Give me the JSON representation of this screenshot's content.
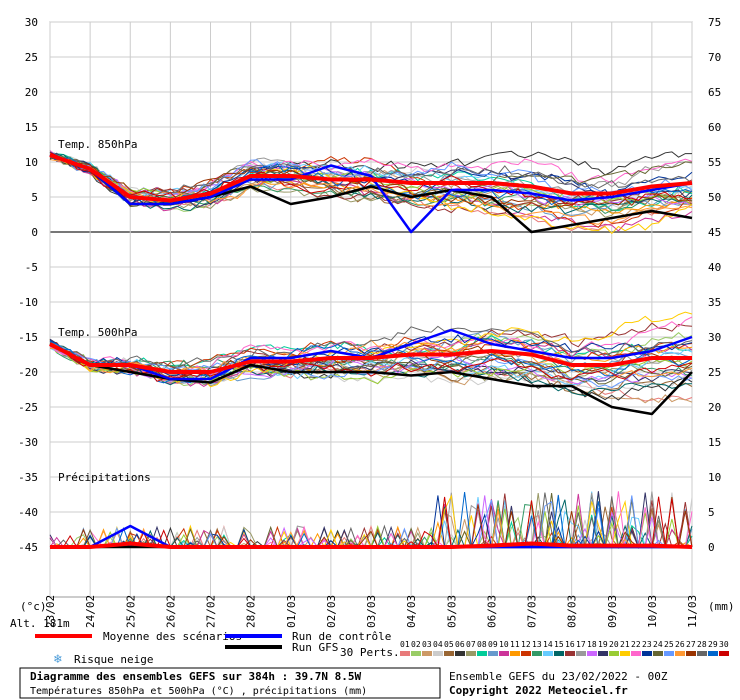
{
  "chart_data": {
    "type": "line",
    "title": "Diagramme des ensembles GEFS sur 384h : 39.7N 8.5W",
    "subtitle": "Températures 850hPa et 500hPa (°C) , précipitations (mm)",
    "run_info": "Ensemble GEFS du 23/02/2022 - 00Z",
    "copyright": "Copyright 2022 Meteociel.fr",
    "altitude": "Alt. 181m",
    "left_unit": "(°c)",
    "right_unit": "(mm)",
    "x_dates": [
      "23/02",
      "24/02",
      "25/02",
      "26/02",
      "27/02",
      "28/02",
      "01/03",
      "02/03",
      "03/03",
      "04/03",
      "05/03",
      "06/03",
      "07/03",
      "08/03",
      "09/03",
      "10/03",
      "11/03"
    ],
    "left_axis": {
      "ticks": [
        30,
        25,
        20,
        15,
        10,
        5,
        0,
        -5,
        -10,
        -15,
        -20,
        -25,
        -30,
        -35,
        -40,
        -45
      ],
      "ylim": [
        -45,
        30
      ]
    },
    "right_axis": {
      "ticks": [
        75,
        70,
        65,
        60,
        55,
        50,
        45,
        40,
        35,
        30,
        25,
        20,
        15,
        10,
        5,
        0
      ]
    },
    "panel_labels": {
      "t850": "Temp. 850hPa",
      "t500": "Temp. 500hPa",
      "precip": "Précipitations"
    },
    "series": [
      {
        "name": "Moyenne des scénarios",
        "panel": "t850",
        "x": [
          0,
          1,
          2,
          3,
          4,
          5,
          6,
          7,
          8,
          9,
          10,
          11,
          12,
          13,
          14,
          15,
          16
        ],
        "values": [
          11,
          9,
          5,
          4.5,
          5.5,
          8,
          8,
          7.5,
          7.5,
          7,
          7,
          7,
          6.5,
          5.5,
          5.5,
          6.5,
          7
        ]
      },
      {
        "name": "Run de contrôle",
        "panel": "t850",
        "x": [
          0,
          1,
          2,
          3,
          4,
          5,
          6,
          7,
          8,
          9,
          10,
          11,
          12,
          13,
          14,
          15,
          16
        ],
        "values": [
          11,
          9,
          4,
          4,
          5,
          7.5,
          7.5,
          9.5,
          8,
          0,
          6,
          6,
          5.5,
          4.5,
          5,
          6,
          7
        ]
      },
      {
        "name": "Run GFS",
        "panel": "t850",
        "x": [
          0,
          1,
          2,
          3,
          4,
          5,
          6,
          7,
          8,
          9,
          10,
          11,
          12,
          13,
          14,
          15,
          16
        ],
        "values": [
          11,
          9,
          4,
          4,
          5,
          6.5,
          4,
          5,
          6.5,
          5,
          6,
          5,
          0,
          1,
          2,
          3,
          2
        ]
      },
      {
        "name": "Moyenne des scénarios",
        "panel": "t500",
        "x": [
          0,
          1,
          2,
          3,
          4,
          5,
          6,
          7,
          8,
          9,
          10,
          11,
          12,
          13,
          14,
          15,
          16
        ],
        "values": [
          -16,
          -19,
          -19,
          -20,
          -20,
          -18.5,
          -18.5,
          -18,
          -18,
          -17.5,
          -17.5,
          -17,
          -17.5,
          -19,
          -19,
          -18,
          -18
        ]
      },
      {
        "name": "Run de contrôle",
        "panel": "t500",
        "x": [
          0,
          1,
          2,
          3,
          4,
          5,
          6,
          7,
          8,
          9,
          10,
          11,
          12,
          13,
          14,
          15,
          16
        ],
        "values": [
          -16,
          -19,
          -19,
          -21,
          -21,
          -18,
          -18,
          -17,
          -18,
          -16,
          -14,
          -16,
          -17,
          -18,
          -18,
          -17,
          -15
        ]
      },
      {
        "name": "Run GFS",
        "panel": "t500",
        "x": [
          0,
          1,
          2,
          3,
          4,
          5,
          6,
          7,
          8,
          9,
          10,
          11,
          12,
          13,
          14,
          15,
          16
        ],
        "values": [
          -16,
          -19,
          -20,
          -21,
          -21.5,
          -19,
          -20,
          -20,
          -20,
          -20.5,
          -20,
          -21,
          -22,
          -22,
          -25,
          -26,
          -20
        ]
      },
      {
        "name": "Moyenne des scénarios",
        "panel": "precip",
        "x": [
          0,
          1,
          2,
          3,
          4,
          5,
          6,
          7,
          8,
          9,
          10,
          11,
          12,
          13,
          14,
          15,
          16
        ],
        "values": [
          0,
          0,
          0.5,
          0,
          0,
          0,
          0,
          0,
          0,
          0,
          0,
          0.2,
          0.5,
          0.2,
          0.2,
          0.2,
          0
        ]
      },
      {
        "name": "Run de contrôle",
        "panel": "precip",
        "x": [
          0,
          1,
          2,
          3,
          4,
          5,
          6,
          7,
          8,
          9,
          10,
          11,
          12,
          13,
          14,
          15,
          16
        ],
        "values": [
          0,
          0,
          3,
          0,
          0,
          0,
          0,
          0,
          0,
          0,
          0,
          0,
          0,
          0,
          0,
          0,
          0
        ]
      },
      {
        "name": "Run GFS",
        "panel": "precip",
        "x": [
          0,
          1,
          2,
          3,
          4,
          5,
          6,
          7,
          8,
          9,
          10,
          11,
          12,
          13,
          14,
          15,
          16
        ],
        "values": [
          0,
          0,
          0,
          0,
          0,
          0,
          0,
          0,
          0,
          0,
          0,
          0,
          0,
          0,
          0,
          0,
          0
        ]
      }
    ],
    "grid": true
  },
  "legend": {
    "mean": "Moyenne des scénarios",
    "control": "Run de contrôle",
    "gfs": "Run GFS",
    "snow": "Risque neige",
    "perts_label": "30 Perts.",
    "pert_numbers": [
      "01",
      "02",
      "03",
      "04",
      "05",
      "06",
      "07",
      "08",
      "09",
      "10",
      "11",
      "12",
      "13",
      "14",
      "15",
      "16",
      "17",
      "18",
      "19",
      "20",
      "21",
      "22",
      "23",
      "24",
      "25",
      "26",
      "27",
      "28",
      "29",
      "30"
    ],
    "pert_colors": [
      "#e87a7a",
      "#9c6",
      "#c96",
      "#ccc",
      "#996633",
      "#333",
      "#996",
      "#0c9",
      "#69c",
      "#c39",
      "#f90",
      "#c30",
      "#396",
      "#6cf",
      "#066",
      "#933",
      "#999",
      "#c6f",
      "#336",
      "#9c3",
      "#fc0",
      "#f6c",
      "#039",
      "#663",
      "#69f",
      "#f93",
      "#930",
      "#666",
      "#06c",
      "#c00"
    ]
  },
  "colors": {
    "mean": "#ff0000",
    "control": "#0000ff",
    "gfs": "#000000"
  }
}
